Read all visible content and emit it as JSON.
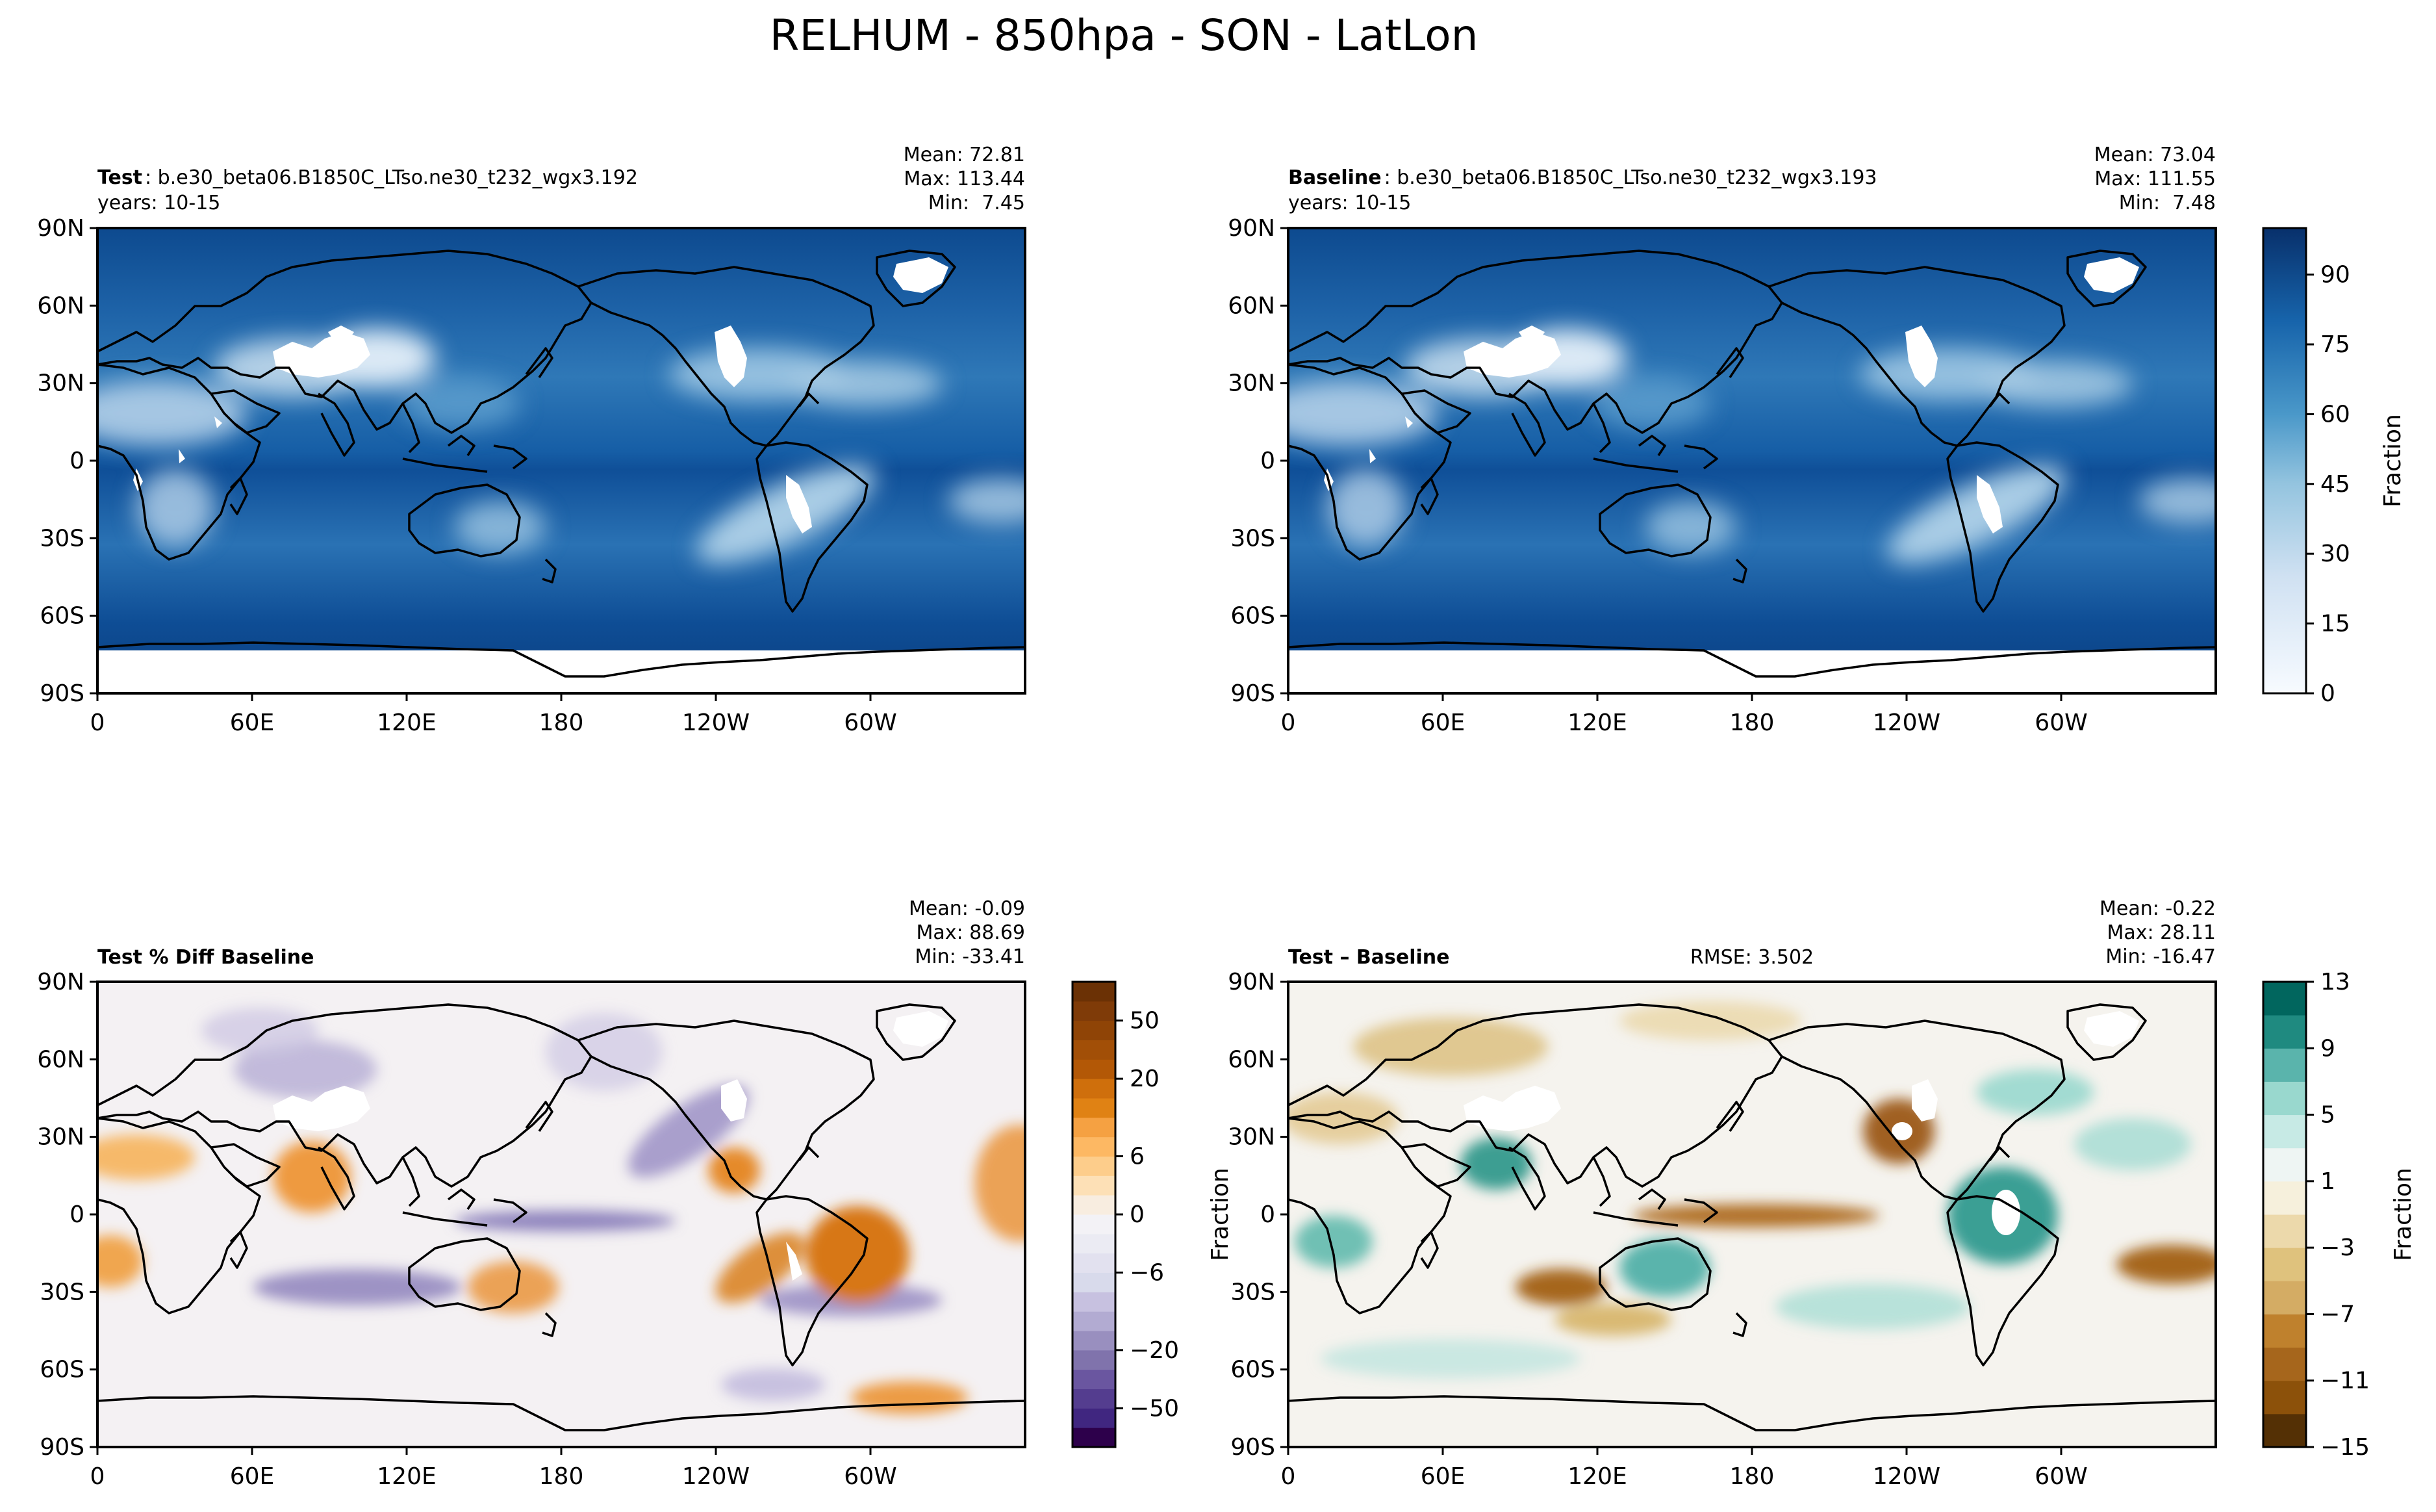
{
  "chart_data": {
    "type": "heatmap",
    "figure_title": "RELHUM - 850hpa - SON - LatLon",
    "lat_ticks": [
      "90N",
      "60N",
      "30N",
      "0",
      "30S",
      "60S",
      "90S"
    ],
    "lon_ticks": [
      "0",
      "60E",
      "120E",
      "180",
      "120W",
      "60W"
    ],
    "panels": [
      {
        "label_bold": "Test",
        "label_text": ": b.e30_beta06.B1850C_LTso.ne30_t232_wgx3.192",
        "years": "years: 10-15",
        "stats": [
          "Mean: 72.81",
          "Max: 113.44",
          "Min:  7.45"
        ],
        "mean": 72.81,
        "max": 113.44,
        "min": 7.45,
        "colormap": "Blues",
        "vmin": 0,
        "vmax": 100
      },
      {
        "label_bold": "Baseline",
        "label_text": ": b.e30_beta06.B1850C_LTso.ne30_t232_wgx3.193",
        "years": "years: 10-15",
        "stats": [
          "Mean: 73.04",
          "Max: 111.55",
          "Min:  7.48"
        ],
        "mean": 73.04,
        "max": 111.55,
        "min": 7.48,
        "colormap": "Blues",
        "vmin": 0,
        "vmax": 100
      },
      {
        "label_bold": "Test % Diff Baseline",
        "label_text": "",
        "stats": [
          "Mean: -0.09",
          "Max: 88.69",
          "Min: -33.41"
        ],
        "mean": -0.09,
        "max": 88.69,
        "min": -33.41,
        "colormap": "PuOr"
      },
      {
        "label_bold": "Test – Baseline",
        "label_text": "",
        "rmse": "RMSE: 3.502",
        "side_label": "Fraction",
        "stats": [
          "Mean: -0.22",
          "Max: 28.11",
          "Min: -16.47"
        ],
        "mean": -0.22,
        "max": 28.11,
        "min": -16.47,
        "colormap": "BrBG"
      }
    ],
    "colorbars": [
      {
        "label": "Fraction",
        "ticks": [
          "0",
          "15",
          "30",
          "45",
          "60",
          "75",
          "90"
        ],
        "tick_values": [
          0,
          15,
          30,
          45,
          60,
          75,
          90
        ],
        "range": [
          0,
          100
        ]
      },
      {
        "label": "",
        "ticks": [
          "−50",
          "−20",
          "−6",
          "0",
          "6",
          "20",
          "50"
        ],
        "levels": [
          -70,
          -60,
          -50,
          -40,
          -30,
          -20,
          -15,
          -10,
          -8,
          -6,
          -4,
          -2,
          0,
          2,
          4,
          6,
          8,
          10,
          15,
          20,
          30,
          40,
          50,
          60,
          70
        ],
        "colors": [
          "#2d004b",
          "#402680",
          "#543d8f",
          "#6a56a0",
          "#8073ac",
          "#998fbf",
          "#b2abd2",
          "#c7c1e0",
          "#d8daeb",
          "#e2e1ef",
          "#ebebf3",
          "#f3f2f6",
          "#f8ede0",
          "#fde0b6",
          "#fdcd8b",
          "#fdb863",
          "#f5a142",
          "#e08214",
          "#cf6f0c",
          "#b35806",
          "#a24f07",
          "#8f4406",
          "#7f3b08",
          "#6b3105"
        ],
        "tick_values": [
          -50,
          -20,
          -6,
          0,
          6,
          20,
          50
        ]
      },
      {
        "label": "Fraction",
        "ticks": [
          "13",
          "9",
          "5",
          "1",
          "−3",
          "−7",
          "−11",
          "−15"
        ],
        "levels": [
          -15,
          -13,
          -11,
          -9,
          -7,
          -5,
          -3,
          -1,
          1,
          3,
          5,
          7,
          9,
          11,
          13
        ],
        "colors": [
          "#543005",
          "#8c510a",
          "#a6661c",
          "#bf812d",
          "#d4ac64",
          "#dfc27d",
          "#ecd9ab",
          "#f6f0dc",
          "#eef5f3",
          "#c7eae5",
          "#99d8ce",
          "#5ab4ac",
          "#1f8a80",
          "#01665e"
        ],
        "tick_values": [
          13,
          9,
          5,
          1,
          -3,
          -7,
          -11,
          -15
        ]
      }
    ]
  }
}
